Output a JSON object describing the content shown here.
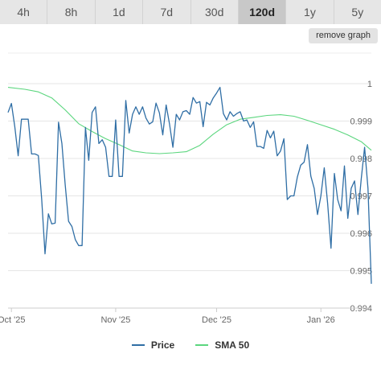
{
  "range_tabs": [
    {
      "label": "4h",
      "active": false
    },
    {
      "label": "8h",
      "active": false
    },
    {
      "label": "1d",
      "active": false
    },
    {
      "label": "7d",
      "active": false
    },
    {
      "label": "30d",
      "active": false
    },
    {
      "label": "120d",
      "active": true
    },
    {
      "label": "1y",
      "active": false
    },
    {
      "label": "5y",
      "active": false
    }
  ],
  "remove_graph_label": "remove graph",
  "chart_data": {
    "type": "line",
    "title": "",
    "xlabel": "",
    "ylabel": "",
    "x_tick_labels": [
      "Oct '25",
      "Nov '25",
      "Dec '25",
      "Jan '26"
    ],
    "x_tick_days": [
      0,
      31,
      61,
      92
    ],
    "y_ticks": [
      "0.994",
      "0.995",
      "0.996",
      "0.997",
      "0.998",
      "0.999",
      "1"
    ],
    "ylim": [
      0.994,
      1.0
    ],
    "xlim_days": [
      -1,
      107
    ],
    "grid": true,
    "legend": "bottom-center",
    "series": [
      {
        "name": "Price",
        "color": "#2f6ea5",
        "points": [
          [
            -1,
            0.99923
          ],
          [
            0,
            0.99947
          ],
          [
            1,
            0.99885
          ],
          [
            2,
            0.99807
          ],
          [
            3,
            0.99905
          ],
          [
            4,
            0.99905
          ],
          [
            5,
            0.99905
          ],
          [
            6,
            0.99812
          ],
          [
            7,
            0.99812
          ],
          [
            8,
            0.99808
          ],
          [
            9,
            0.9969
          ],
          [
            10,
            0.99545
          ],
          [
            11,
            0.99652
          ],
          [
            12,
            0.99625
          ],
          [
            13,
            0.99627
          ],
          [
            14,
            0.99897
          ],
          [
            15,
            0.9984
          ],
          [
            16,
            0.9973
          ],
          [
            17,
            0.99632
          ],
          [
            18,
            0.99618
          ],
          [
            19,
            0.99583
          ],
          [
            20,
            0.99567
          ],
          [
            21,
            0.99567
          ],
          [
            22,
            0.99883
          ],
          [
            23,
            0.99795
          ],
          [
            24,
            0.99923
          ],
          [
            25,
            0.99938
          ],
          [
            26,
            0.9984
          ],
          [
            27,
            0.9985
          ],
          [
            28,
            0.9983
          ],
          [
            29,
            0.99752
          ],
          [
            30,
            0.99752
          ],
          [
            31,
            0.99903
          ],
          [
            32,
            0.99752
          ],
          [
            33,
            0.99752
          ],
          [
            34,
            0.99955
          ],
          [
            35,
            0.99868
          ],
          [
            36,
            0.99918
          ],
          [
            37,
            0.99938
          ],
          [
            38,
            0.99918
          ],
          [
            39,
            0.99938
          ],
          [
            40,
            0.99908
          ],
          [
            41,
            0.99892
          ],
          [
            42,
            0.99898
          ],
          [
            43,
            0.99948
          ],
          [
            44,
            0.99922
          ],
          [
            45,
            0.99863
          ],
          [
            46,
            0.99943
          ],
          [
            47,
            0.99892
          ],
          [
            48,
            0.9983
          ],
          [
            49,
            0.99918
          ],
          [
            50,
            0.99903
          ],
          [
            51,
            0.99925
          ],
          [
            52,
            0.99928
          ],
          [
            53,
            0.99918
          ],
          [
            54,
            0.99963
          ],
          [
            55,
            0.99948
          ],
          [
            56,
            0.99952
          ],
          [
            57,
            0.99885
          ],
          [
            58,
            0.9995
          ],
          [
            59,
            0.99943
          ],
          [
            60,
            0.99962
          ],
          [
            61,
            0.99975
          ],
          [
            62,
            0.9999
          ],
          [
            63,
            0.9992
          ],
          [
            64,
            0.99903
          ],
          [
            65,
            0.99925
          ],
          [
            66,
            0.99913
          ],
          [
            67,
            0.9992
          ],
          [
            68,
            0.99925
          ],
          [
            69,
            0.999
          ],
          [
            70,
            0.99903
          ],
          [
            71,
            0.99883
          ],
          [
            72,
            0.99898
          ],
          [
            73,
            0.99832
          ],
          [
            74,
            0.99832
          ],
          [
            75,
            0.99827
          ],
          [
            76,
            0.99875
          ],
          [
            77,
            0.99855
          ],
          [
            78,
            0.99873
          ],
          [
            79,
            0.99807
          ],
          [
            80,
            0.9982
          ],
          [
            81,
            0.99853
          ],
          [
            82,
            0.9969
          ],
          [
            83,
            0.997
          ],
          [
            84,
            0.997
          ],
          [
            85,
            0.9975
          ],
          [
            86,
            0.99782
          ],
          [
            87,
            0.9979
          ],
          [
            88,
            0.99837
          ],
          [
            89,
            0.99753
          ],
          [
            90,
            0.9972
          ],
          [
            91,
            0.9965
          ],
          [
            92,
            0.997
          ],
          [
            93,
            0.99775
          ],
          [
            94,
            0.9968
          ],
          [
            95,
            0.9956
          ],
          [
            96,
            0.9976
          ],
          [
            97,
            0.9969
          ],
          [
            98,
            0.9966
          ],
          [
            99,
            0.9978
          ],
          [
            100,
            0.9964
          ],
          [
            101,
            0.9972
          ],
          [
            102,
            0.9974
          ],
          [
            103,
            0.9965
          ],
          [
            104,
            0.99745
          ],
          [
            105,
            0.9983
          ],
          [
            106,
            0.9972
          ],
          [
            107,
            0.99465
          ]
        ]
      },
      {
        "name": "SMA 50",
        "color": "#5bd67e",
        "points": [
          [
            -1,
            0.9999
          ],
          [
            4,
            0.99985
          ],
          [
            8,
            0.99978
          ],
          [
            12,
            0.99962
          ],
          [
            16,
            0.9993
          ],
          [
            20,
            0.99893
          ],
          [
            24,
            0.99872
          ],
          [
            28,
            0.99853
          ],
          [
            32,
            0.99837
          ],
          [
            36,
            0.9982
          ],
          [
            40,
            0.99815
          ],
          [
            44,
            0.99813
          ],
          [
            48,
            0.99815
          ],
          [
            52,
            0.99818
          ],
          [
            56,
            0.99835
          ],
          [
            60,
            0.99865
          ],
          [
            64,
            0.9989
          ],
          [
            68,
            0.99905
          ],
          [
            72,
            0.9991
          ],
          [
            76,
            0.99915
          ],
          [
            80,
            0.99917
          ],
          [
            84,
            0.99913
          ],
          [
            88,
            0.99902
          ],
          [
            92,
            0.9989
          ],
          [
            96,
            0.99878
          ],
          [
            100,
            0.99863
          ],
          [
            104,
            0.99845
          ],
          [
            107,
            0.99822
          ]
        ]
      }
    ]
  }
}
